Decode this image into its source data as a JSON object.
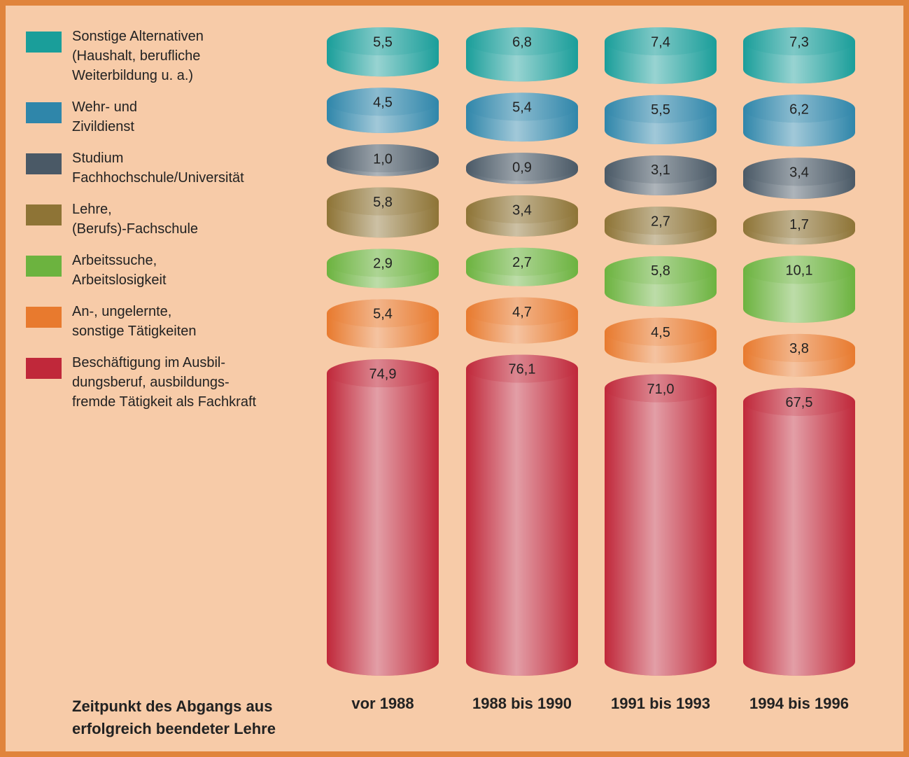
{
  "chart_data": {
    "type": "bar",
    "stacked": true,
    "x_label": "Zeitpunkt des Abgangs aus\nerfolgreich beendeter Lehre",
    "categories": [
      "vor 1988",
      "1988 bis 1990",
      "1991 bis 1993",
      "1994 bis 1996"
    ],
    "series": [
      {
        "name": "Sonstige Alternativen\n(Haushalt, berufliche\nWeiterbildung u. a.)",
        "color": "#1a9e9a",
        "values": [
          5.5,
          6.8,
          7.4,
          7.3
        ],
        "value_labels": [
          "5,5",
          "6,8",
          "7,4",
          "7,3"
        ]
      },
      {
        "name": "Wehr- und\nZivildienst",
        "color": "#2f86aa",
        "values": [
          4.5,
          5.4,
          5.5,
          6.2
        ],
        "value_labels": [
          "4,5",
          "5,4",
          "5,5",
          "6,2"
        ]
      },
      {
        "name": "Studium\nFachhochschule/Universität",
        "color": "#4a5966",
        "values": [
          1.0,
          0.9,
          3.1,
          3.4
        ],
        "value_labels": [
          "1,0",
          "0,9",
          "3,1",
          "3,4"
        ]
      },
      {
        "name": "Lehre,\n(Berufs)-Fachschule",
        "color": "#8e7436",
        "values": [
          5.8,
          3.4,
          2.7,
          1.7
        ],
        "value_labels": [
          "5,8",
          "3,4",
          "2,7",
          "1,7"
        ]
      },
      {
        "name": "Arbeitssuche,\nArbeitslosigkeit",
        "color": "#6cb33f",
        "values": [
          2.9,
          2.7,
          5.8,
          10.1
        ],
        "value_labels": [
          "2,9",
          "2,7",
          "5,8",
          "10,1"
        ]
      },
      {
        "name": "An-, ungelernte,\nsonstige Tätigkeiten",
        "color": "#e87a2e",
        "values": [
          5.4,
          4.7,
          4.5,
          3.8
        ],
        "value_labels": [
          "5,4",
          "4,7",
          "4,5",
          "3,8"
        ]
      },
      {
        "name": "Beschäftigung im Ausbil-\ndungsberuf, ausbildungs-\nfremde Tätigkeit als Fachkraft",
        "color": "#c0283a",
        "values": [
          74.9,
          76.1,
          71.0,
          67.5
        ],
        "value_labels": [
          "74,9",
          "76,1",
          "71,0",
          "67,5"
        ]
      }
    ]
  }
}
